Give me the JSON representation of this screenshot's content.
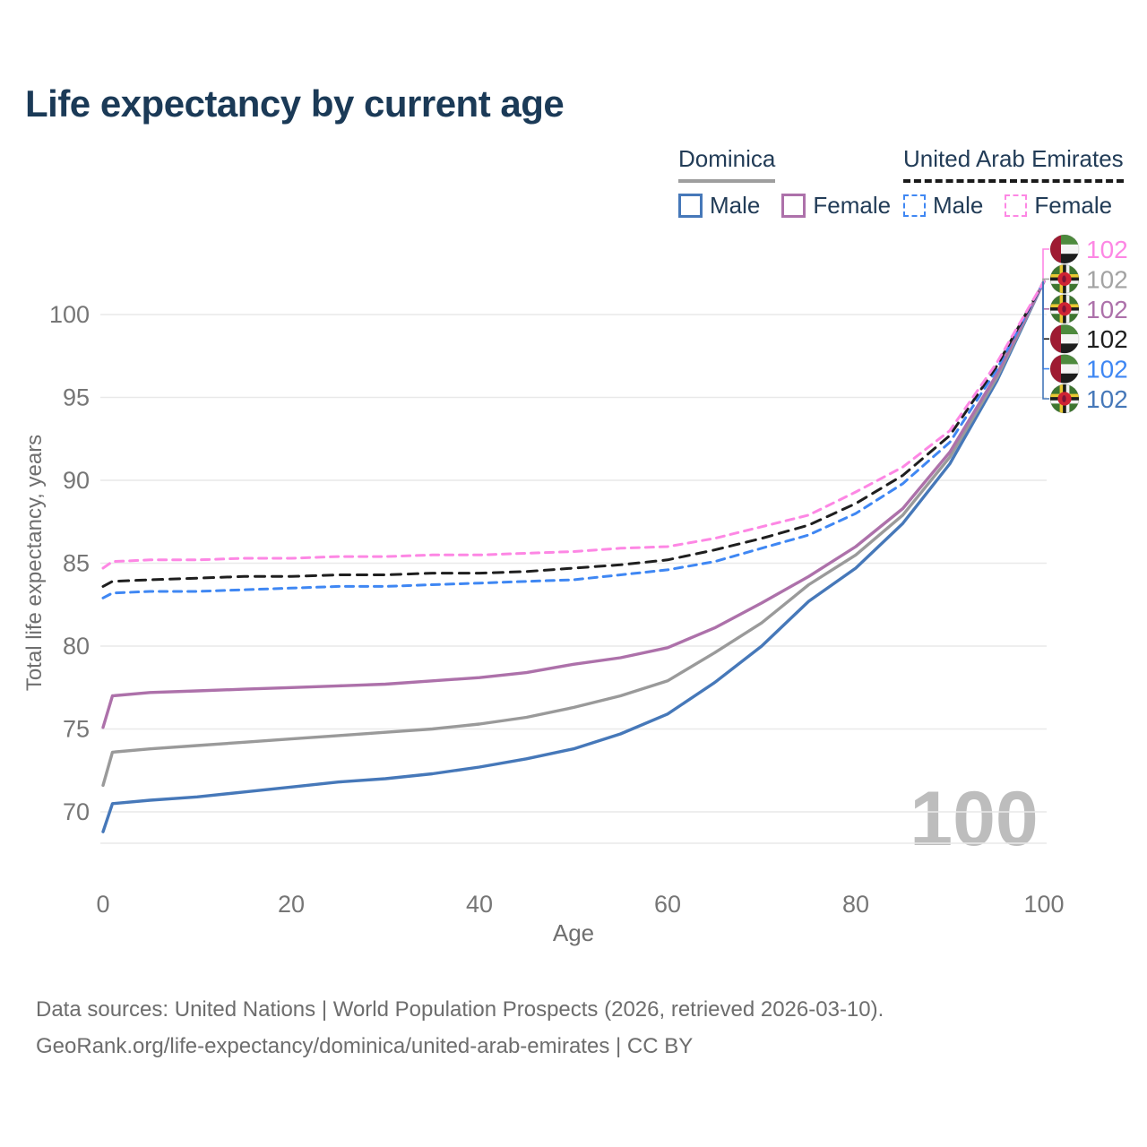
{
  "header": {
    "title": "Life expectancy by current age"
  },
  "legend": {
    "groups": [
      {
        "name": "Dominica",
        "underline_style": "solid",
        "underline_color": "#9e9e9e",
        "items": [
          {
            "label": "Male",
            "color": "#4678b9",
            "dashed": false
          },
          {
            "label": "Female",
            "color": "#ad71aa",
            "dashed": false
          }
        ]
      },
      {
        "name": "United Arab Emirates",
        "underline_style": "dashed",
        "underline_color": "#1a1a1a",
        "items": [
          {
            "label": "Male",
            "color": "#3f87f3",
            "dashed": true
          },
          {
            "label": "Female",
            "color": "#fd87e4",
            "dashed": true
          }
        ]
      }
    ]
  },
  "chart_data": {
    "type": "line",
    "title": "Life expectancy by current age",
    "xlabel": "Age",
    "ylabel": "Total life expectancy, years",
    "x_ticks": [
      0,
      20,
      40,
      60,
      80,
      100
    ],
    "y_ticks": [
      70,
      75,
      80,
      85,
      90,
      95,
      100
    ],
    "xlim": [
      0,
      100
    ],
    "ylim": [
      68.1,
      102.6
    ],
    "grid": true,
    "x": [
      0,
      1,
      5,
      10,
      15,
      20,
      25,
      30,
      35,
      40,
      45,
      50,
      55,
      60,
      65,
      70,
      75,
      80,
      85,
      90,
      95,
      100
    ],
    "series": [
      {
        "name": "Dominica Male",
        "country": "Dominica",
        "sex": "Male",
        "color": "#4678b9",
        "dash": null,
        "values": [
          68.8,
          70.5,
          70.7,
          70.9,
          71.2,
          71.5,
          71.8,
          72.0,
          72.3,
          72.7,
          73.2,
          73.8,
          74.7,
          75.9,
          77.8,
          80.0,
          82.7,
          84.7,
          87.4,
          91.0,
          96.0,
          102
        ]
      },
      {
        "name": "Dominica",
        "country": "Dominica",
        "sex": "Both",
        "color": "#9a9a9a",
        "dash": null,
        "values": [
          71.6,
          73.6,
          73.8,
          74.0,
          74.2,
          74.4,
          74.6,
          74.8,
          75.0,
          75.3,
          75.7,
          76.3,
          77.0,
          77.9,
          79.6,
          81.4,
          83.7,
          85.5,
          87.9,
          91.4,
          96.2,
          102
        ]
      },
      {
        "name": "Dominica Female",
        "country": "Dominica",
        "sex": "Female",
        "color": "#ad71aa",
        "dash": null,
        "values": [
          75.1,
          77.0,
          77.2,
          77.3,
          77.4,
          77.5,
          77.6,
          77.7,
          77.9,
          78.1,
          78.4,
          78.9,
          79.3,
          79.9,
          81.1,
          82.6,
          84.2,
          86.0,
          88.3,
          91.7,
          96.4,
          102
        ]
      },
      {
        "name": "United Arab Emirates Male",
        "country": "United Arab Emirates",
        "sex": "Male",
        "color": "#3f87f3",
        "dash": "9 7",
        "values": [
          82.9,
          83.2,
          83.3,
          83.3,
          83.4,
          83.5,
          83.6,
          83.6,
          83.7,
          83.8,
          83.9,
          84.0,
          84.3,
          84.6,
          85.1,
          85.9,
          86.7,
          88.0,
          89.8,
          92.3,
          96.7,
          102
        ]
      },
      {
        "name": "United Arab Emirates",
        "country": "United Arab Emirates",
        "sex": "Both",
        "color": "#1f1f1f",
        "dash": "11 8",
        "values": [
          83.6,
          83.9,
          84.0,
          84.1,
          84.2,
          84.2,
          84.3,
          84.3,
          84.4,
          84.4,
          84.5,
          84.7,
          84.9,
          85.2,
          85.8,
          86.5,
          87.3,
          88.6,
          90.3,
          92.7,
          96.9,
          102
        ]
      },
      {
        "name": "United Arab Emirates Female",
        "country": "United Arab Emirates",
        "sex": "Female",
        "color": "#fd87e4",
        "dash": "9 7",
        "values": [
          84.7,
          85.1,
          85.2,
          85.2,
          85.3,
          85.3,
          85.4,
          85.4,
          85.5,
          85.5,
          85.6,
          85.7,
          85.9,
          86.0,
          86.5,
          87.2,
          87.9,
          89.3,
          90.8,
          93.0,
          97.1,
          102
        ]
      }
    ],
    "end_labels": [
      {
        "value": "102",
        "color": "#fd87e4",
        "flag": "are",
        "series": "United Arab Emirates Female"
      },
      {
        "value": "102",
        "color": "#a3a3a3",
        "flag": "dma",
        "series": "Dominica"
      },
      {
        "value": "102",
        "color": "#ad71aa",
        "flag": "dma",
        "series": "Dominica Female"
      },
      {
        "value": "102",
        "color": "#1f1f1f",
        "flag": "are",
        "series": "United Arab Emirates"
      },
      {
        "value": "102",
        "color": "#3f87f3",
        "flag": "are",
        "series": "United Arab Emirates Male"
      },
      {
        "value": "102",
        "color": "#4678b9",
        "flag": "dma",
        "series": "Dominica Male"
      }
    ],
    "watermark": "100",
    "legend_position": "top-right"
  },
  "footer": {
    "line1": "Data sources: United Nations | World Population Prospects (2026, retrieved 2026-03-10).",
    "line2": "GeoRank.org/life-expectancy/dominica/united-arab-emirates | CC BY"
  }
}
